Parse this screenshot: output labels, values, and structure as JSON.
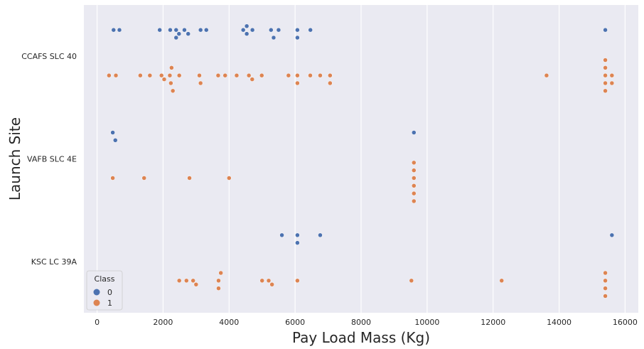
{
  "chart_data": {
    "type": "scatter",
    "subtype": "swarm",
    "title": "",
    "xlabel": "Pay Load Mass (Kg)",
    "ylabel": "Launch Site",
    "xlim": [
      -400,
      16400
    ],
    "x_ticks": [
      0,
      2000,
      4000,
      6000,
      8000,
      10000,
      12000,
      14000,
      16000
    ],
    "x_tick_labels": [
      "0",
      "2000",
      "4000",
      "6000",
      "8000",
      "10000",
      "12000",
      "14000",
      "16000"
    ],
    "categories": [
      "CCAFS SLC 40",
      "VAFB SLC 4E",
      "KSC LC 39A"
    ],
    "grid": true,
    "background": "#EAEAF2",
    "legend": {
      "title": "Class",
      "placement": "lower-left",
      "entries": [
        {
          "label": "0",
          "color": "#4C72B0"
        },
        {
          "label": "1",
          "color": "#DD8452"
        }
      ]
    },
    "series": [
      {
        "class": "0",
        "color": "#4C72B0",
        "points": [
          {
            "site": "CCAFS SLC 40",
            "mass": [
              500,
              677,
              1898,
              2216,
              2395,
              2395,
              2482,
              2647,
              2760,
              3136,
              3310,
              4428,
              4535,
              4535,
              4707,
              5271,
              5350,
              5500,
              6070,
              6070,
              6464,
              15400
            ]
          },
          {
            "site": "VAFB SLC 4E",
            "mass": [
              475,
              553,
              9600
            ]
          },
          {
            "site": "KSC LC 39A",
            "mass": [
              5600,
              6070,
              6070,
              6761,
              15600
            ]
          }
        ]
      },
      {
        "class": "1",
        "color": "#DD8452",
        "points": [
          {
            "site": "CCAFS SLC 40",
            "mass": [
              362,
              570,
              1310,
              1600,
              1952,
              2034,
              2205,
              2236,
              2257,
              2296,
              2490,
              3100,
              3136,
              3669,
              3880,
              4230,
              4600,
              4700,
              4990,
              5800,
              6070,
              6070,
              6460,
              6761,
              7060,
              7060,
              13620,
              15400,
              15400,
              15400,
              15400,
              15400,
              15600,
              15600
            ]
          },
          {
            "site": "VAFB SLC 4E",
            "mass": [
              475,
              1425,
              2800,
              4000,
              9600,
              9600,
              9600,
              9600,
              9600,
              9600
            ]
          },
          {
            "site": "KSC LC 39A",
            "mass": [
              2490,
              2708,
              2910,
              3000,
              3681,
              3681,
              3750,
              5000,
              5200,
              5300,
              6070,
              9525,
              12259,
              15400,
              15400,
              15400,
              15400
            ]
          }
        ]
      }
    ]
  }
}
